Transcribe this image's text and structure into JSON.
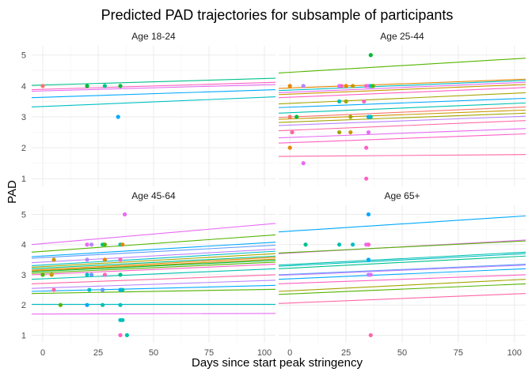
{
  "chart_data": {
    "type": "scatter",
    "title": "Predicted PAD trajectories for subsample of participants",
    "xlabel": "Days since start peak stringency",
    "ylabel": "PAD",
    "xlim": [
      -5,
      105
    ],
    "ylim": [
      0.75,
      5.3
    ],
    "x_ticks": [
      0,
      25,
      50,
      75,
      100
    ],
    "y_ticks": [
      1,
      2,
      3,
      4,
      5
    ],
    "grid": true,
    "legend": "none",
    "panels": [
      {
        "label": "Age 18-24",
        "lines": [
          {
            "y0": 4.02,
            "y1": 4.25,
            "color": "#00C08B"
          },
          {
            "y0": 3.88,
            "y1": 4.12,
            "color": "#FF61C3"
          },
          {
            "y0": 3.83,
            "y1": 4.05,
            "color": "#E76BF3"
          },
          {
            "y0": 3.62,
            "y1": 3.88,
            "color": "#00A9FF"
          },
          {
            "y0": 3.32,
            "y1": 3.65,
            "color": "#00BFC4"
          }
        ],
        "points": [
          {
            "x": 0,
            "y": 4,
            "color": "#F8766D"
          },
          {
            "x": 20,
            "y": 4,
            "color": "#00BA38"
          },
          {
            "x": 28,
            "y": 4,
            "color": "#00C08B"
          },
          {
            "x": 35,
            "y": 4,
            "color": "#00BA38"
          },
          {
            "x": 34,
            "y": 3,
            "color": "#00A9FF"
          }
        ]
      },
      {
        "label": "Age 25-44",
        "lines": [
          {
            "y0": 4.42,
            "y1": 4.9,
            "color": "#53B400"
          },
          {
            "y0": 3.92,
            "y1": 4.22,
            "color": "#E58700"
          },
          {
            "y0": 3.85,
            "y1": 4.18,
            "color": "#00BFC4"
          },
          {
            "y0": 3.78,
            "y1": 4.12,
            "color": "#E76BF3"
          },
          {
            "y0": 3.72,
            "y1": 4.05,
            "color": "#C99800"
          },
          {
            "y0": 3.62,
            "y1": 3.95,
            "color": "#FF61C3"
          },
          {
            "y0": 3.42,
            "y1": 3.78,
            "color": "#A3A500"
          },
          {
            "y0": 3.3,
            "y1": 3.6,
            "color": "#00A9FF"
          },
          {
            "y0": 3.12,
            "y1": 3.45,
            "color": "#00C0AF"
          },
          {
            "y0": 2.98,
            "y1": 3.32,
            "color": "#F8766D"
          },
          {
            "y0": 2.92,
            "y1": 3.22,
            "color": "#C99800"
          },
          {
            "y0": 2.82,
            "y1": 3.12,
            "color": "#A3A500"
          },
          {
            "y0": 2.72,
            "y1": 3.02,
            "color": "#B983FF"
          },
          {
            "y0": 2.55,
            "y1": 2.88,
            "color": "#FF67A4"
          },
          {
            "y0": 2.32,
            "y1": 2.62,
            "color": "#E76BF3"
          },
          {
            "y0": 2.15,
            "y1": 2.45,
            "color": "#FF61C3"
          },
          {
            "y0": 1.72,
            "y1": 1.78,
            "color": "#FF67A4"
          }
        ],
        "points": [
          {
            "x": 0,
            "y": 4,
            "color": "#E58700"
          },
          {
            "x": 6,
            "y": 4,
            "color": "#B983FF"
          },
          {
            "x": 22,
            "y": 4,
            "color": "#E76BF3"
          },
          {
            "x": 23,
            "y": 4,
            "color": "#FF61C3"
          },
          {
            "x": 25,
            "y": 4,
            "color": "#E58700"
          },
          {
            "x": 28,
            "y": 4,
            "color": "#C99800"
          },
          {
            "x": 34,
            "y": 4,
            "color": "#FF61C3"
          },
          {
            "x": 35,
            "y": 4,
            "color": "#E76BF3"
          },
          {
            "x": 36,
            "y": 4,
            "color": "#00BFC4"
          },
          {
            "x": 37,
            "y": 4,
            "color": "#53B400"
          },
          {
            "x": 36,
            "y": 5,
            "color": "#00BA38"
          },
          {
            "x": 22,
            "y": 3.5,
            "color": "#00C0AF"
          },
          {
            "x": 25,
            "y": 3.5,
            "color": "#A3A500"
          },
          {
            "x": 33,
            "y": 3.5,
            "color": "#FF61C3"
          },
          {
            "x": 0,
            "y": 3,
            "color": "#F8766D"
          },
          {
            "x": 3,
            "y": 3,
            "color": "#00BA38"
          },
          {
            "x": 27,
            "y": 3,
            "color": "#A3A500"
          },
          {
            "x": 35,
            "y": 3,
            "color": "#00A9FF"
          },
          {
            "x": 36,
            "y": 3,
            "color": "#00C0AF"
          },
          {
            "x": 1,
            "y": 2.5,
            "color": "#FF67A4"
          },
          {
            "x": 22,
            "y": 2.5,
            "color": "#A3A500"
          },
          {
            "x": 27,
            "y": 2.5,
            "color": "#C99800"
          },
          {
            "x": 35,
            "y": 2.5,
            "color": "#E76BF3"
          },
          {
            "x": 0,
            "y": 2,
            "color": "#E58700"
          },
          {
            "x": 34,
            "y": 2,
            "color": "#FF61C3"
          },
          {
            "x": 6,
            "y": 1.5,
            "color": "#E76BF3"
          },
          {
            "x": 34,
            "y": 1,
            "color": "#FF61C3"
          }
        ]
      },
      {
        "label": "Age 45-64",
        "lines": [
          {
            "y0": 4.0,
            "y1": 4.7,
            "color": "#E76BF3"
          },
          {
            "y0": 3.75,
            "y1": 4.32,
            "color": "#53B400"
          },
          {
            "y0": 3.6,
            "y1": 4.08,
            "color": "#00A9FF"
          },
          {
            "y0": 3.55,
            "y1": 3.98,
            "color": "#619CFF"
          },
          {
            "y0": 3.4,
            "y1": 3.85,
            "color": "#B983FF"
          },
          {
            "y0": 3.3,
            "y1": 3.78,
            "color": "#00BFC4"
          },
          {
            "y0": 3.25,
            "y1": 3.7,
            "color": "#A3A500"
          },
          {
            "y0": 3.2,
            "y1": 3.62,
            "color": "#00C08B"
          },
          {
            "y0": 3.15,
            "y1": 3.58,
            "color": "#E58700"
          },
          {
            "y0": 3.12,
            "y1": 3.52,
            "color": "#C99800"
          },
          {
            "y0": 3.1,
            "y1": 3.48,
            "color": "#00BA38"
          },
          {
            "y0": 3.05,
            "y1": 3.42,
            "color": "#53B400"
          },
          {
            "y0": 3.0,
            "y1": 3.35,
            "color": "#FF61C3"
          },
          {
            "y0": 2.85,
            "y1": 3.2,
            "color": "#00C0AF"
          },
          {
            "y0": 2.7,
            "y1": 3.0,
            "color": "#FF67A4"
          },
          {
            "y0": 2.55,
            "y1": 2.82,
            "color": "#B983FF"
          },
          {
            "y0": 2.45,
            "y1": 2.65,
            "color": "#00A9FF"
          },
          {
            "y0": 2.38,
            "y1": 2.52,
            "color": "#53B400"
          },
          {
            "y0": 2.02,
            "y1": 2.02,
            "color": "#00BFC4"
          },
          {
            "y0": 1.7,
            "y1": 1.72,
            "color": "#E76BF3"
          }
        ],
        "points": [
          {
            "x": 37,
            "y": 5,
            "color": "#E76BF3"
          },
          {
            "x": 20,
            "y": 4,
            "color": "#E76BF3"
          },
          {
            "x": 22,
            "y": 4,
            "color": "#B983FF"
          },
          {
            "x": 27,
            "y": 4,
            "color": "#00C08B"
          },
          {
            "x": 28,
            "y": 4,
            "color": "#53B400"
          },
          {
            "x": 35,
            "y": 4,
            "color": "#00C0AF"
          },
          {
            "x": 36,
            "y": 4,
            "color": "#E58700"
          },
          {
            "x": 5,
            "y": 3.5,
            "color": "#C99800"
          },
          {
            "x": 20,
            "y": 3.5,
            "color": "#B983FF"
          },
          {
            "x": 28,
            "y": 3.5,
            "color": "#E58700"
          },
          {
            "x": 35,
            "y": 3.5,
            "color": "#FF61C3"
          },
          {
            "x": 0,
            "y": 3,
            "color": "#53B400"
          },
          {
            "x": 4,
            "y": 3,
            "color": "#C99800"
          },
          {
            "x": 20,
            "y": 3,
            "color": "#00BFC4"
          },
          {
            "x": 22,
            "y": 3,
            "color": "#619CFF"
          },
          {
            "x": 28,
            "y": 3,
            "color": "#FF61C3"
          },
          {
            "x": 35,
            "y": 3,
            "color": "#00C08B"
          },
          {
            "x": 5,
            "y": 2.5,
            "color": "#FF67A4"
          },
          {
            "x": 21,
            "y": 2.5,
            "color": "#00BFC4"
          },
          {
            "x": 27,
            "y": 2.5,
            "color": "#619CFF"
          },
          {
            "x": 35,
            "y": 2.5,
            "color": "#00A9FF"
          },
          {
            "x": 36,
            "y": 2.5,
            "color": "#00C0AF"
          },
          {
            "x": 8,
            "y": 2,
            "color": "#53B400"
          },
          {
            "x": 20,
            "y": 2,
            "color": "#00A9FF"
          },
          {
            "x": 27,
            "y": 2,
            "color": "#00C0AF"
          },
          {
            "x": 35,
            "y": 2,
            "color": "#00BFC4"
          },
          {
            "x": 35,
            "y": 1.5,
            "color": "#00BFC4"
          },
          {
            "x": 36,
            "y": 1.5,
            "color": "#00C0AF"
          },
          {
            "x": 35,
            "y": 1,
            "color": "#FF61C3"
          },
          {
            "x": 38,
            "y": 1,
            "color": "#00C0AF"
          }
        ]
      },
      {
        "label": "Age 65+",
        "lines": [
          {
            "y0": 4.42,
            "y1": 4.95,
            "color": "#00A9FF"
          },
          {
            "y0": 3.7,
            "y1": 4.15,
            "color": "#E76BF3"
          },
          {
            "y0": 3.72,
            "y1": 4.12,
            "color": "#53B400"
          },
          {
            "y0": 3.32,
            "y1": 3.75,
            "color": "#00C0AF"
          },
          {
            "y0": 3.28,
            "y1": 3.7,
            "color": "#00BFC4"
          },
          {
            "y0": 3.2,
            "y1": 3.62,
            "color": "#00C08B"
          },
          {
            "y0": 3.0,
            "y1": 3.35,
            "color": "#619CFF"
          },
          {
            "y0": 2.98,
            "y1": 3.32,
            "color": "#B983FF"
          },
          {
            "y0": 2.85,
            "y1": 3.2,
            "color": "#00A9FF"
          },
          {
            "y0": 2.7,
            "y1": 3.0,
            "color": "#FF61C3"
          },
          {
            "y0": 2.45,
            "y1": 2.85,
            "color": "#A3A500"
          },
          {
            "y0": 2.35,
            "y1": 2.7,
            "color": "#53B400"
          },
          {
            "y0": 2.05,
            "y1": 2.38,
            "color": "#FF67A4"
          }
        ],
        "points": [
          {
            "x": 35,
            "y": 5,
            "color": "#00A9FF"
          },
          {
            "x": 7,
            "y": 4,
            "color": "#00C08B"
          },
          {
            "x": 22,
            "y": 4,
            "color": "#00C0AF"
          },
          {
            "x": 28,
            "y": 4,
            "color": "#00BFC4"
          },
          {
            "x": 34,
            "y": 4,
            "color": "#E76BF3"
          },
          {
            "x": 35,
            "y": 4,
            "color": "#FF61C3"
          },
          {
            "x": 35,
            "y": 3.5,
            "color": "#00A9FF"
          },
          {
            "x": 35,
            "y": 3,
            "color": "#B983FF"
          },
          {
            "x": 36,
            "y": 3,
            "color": "#E76BF3"
          },
          {
            "x": 36,
            "y": 1,
            "color": "#FF67A4"
          }
        ]
      }
    ]
  }
}
